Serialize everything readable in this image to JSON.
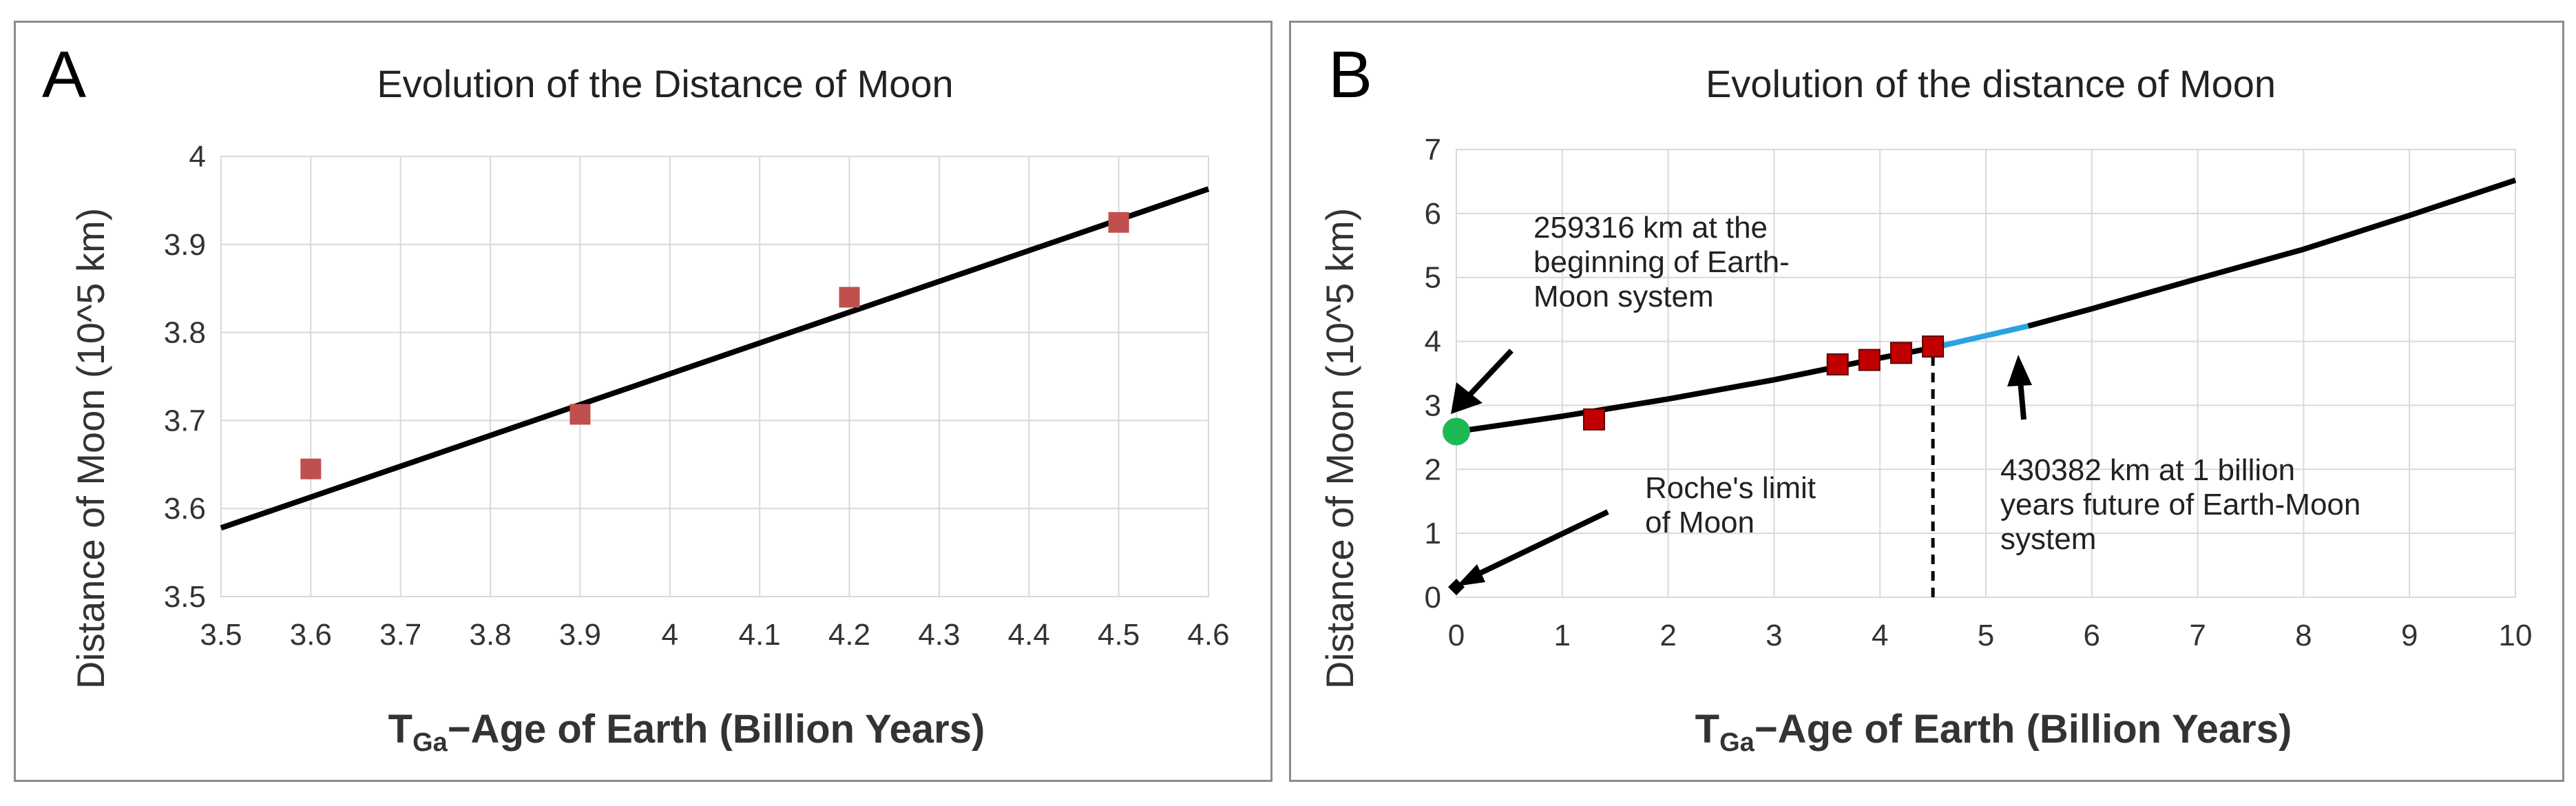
{
  "chart_data": [
    {
      "panel_letter": "A",
      "type": "scatter",
      "title": "Evolution of the Distance of Moon",
      "xlabel": "TGa−Age of Earth (Billion Years)",
      "ylabel": "Distance of Moon (10^5 km)",
      "xlim": [
        3.5,
        4.6
      ],
      "ylim": [
        3.5,
        4.0
      ],
      "xticks": [
        3.5,
        3.6,
        3.7,
        3.8,
        3.9,
        4.0,
        4.1,
        4.2,
        4.3,
        4.4,
        4.5,
        4.6
      ],
      "yticks": [
        3.5,
        3.6,
        3.7,
        3.8,
        3.9,
        4.0
      ],
      "grid": true,
      "series": [
        {
          "kind": "markers",
          "marker": "square",
          "color": "#c0504d",
          "x": [
            3.6,
            3.9,
            4.2,
            4.5
          ],
          "y": [
            3.645,
            3.707,
            3.84,
            3.925
          ]
        },
        {
          "kind": "line",
          "color": "#000000",
          "x": [
            3.5,
            4.6
          ],
          "y": [
            3.578,
            3.963
          ]
        }
      ]
    },
    {
      "panel_letter": "B",
      "type": "line",
      "title": "Evolution of the distance of Moon",
      "xlabel": "TGa−Age of Earth (Billion Years)",
      "ylabel": "Distance of Moon (10^5 km)",
      "xlim": [
        0,
        10
      ],
      "ylim": [
        0,
        7
      ],
      "xticks": [
        0,
        1,
        2,
        3,
        4,
        5,
        6,
        7,
        8,
        9,
        10
      ],
      "yticks": [
        0,
        1,
        2,
        3,
        4,
        5,
        6,
        7
      ],
      "grid": true,
      "series": [
        {
          "kind": "line",
          "color": "#000000",
          "x": [
            0,
            1,
            2,
            3,
            4,
            4.5
          ],
          "y": [
            2.59,
            2.83,
            3.1,
            3.4,
            3.74,
            3.9
          ]
        },
        {
          "kind": "line",
          "color": "#29a3e0",
          "x": [
            4.5,
            5.0,
            5.4
          ],
          "y": [
            3.9,
            4.09,
            4.24
          ]
        },
        {
          "kind": "line",
          "color": "#000000",
          "x": [
            5.4,
            6,
            7,
            8,
            9,
            10
          ],
          "y": [
            4.24,
            4.51,
            4.98,
            5.44,
            5.97,
            6.52
          ]
        },
        {
          "kind": "markers",
          "marker": "square",
          "color": "#c00000",
          "x": [
            1.3,
            3.6,
            3.9,
            4.2,
            4.5
          ],
          "y": [
            2.78,
            3.64,
            3.71,
            3.82,
            3.92
          ]
        },
        {
          "kind": "markers",
          "marker": "circle",
          "color": "#1db954",
          "x": [
            0
          ],
          "y": [
            2.59
          ]
        },
        {
          "kind": "markers",
          "marker": "diamond",
          "color": "#000000",
          "x": [
            0
          ],
          "y": [
            0.16
          ]
        }
      ],
      "vline": {
        "x": 4.5,
        "y_from": 0,
        "y_to": 3.9,
        "style": "dashed"
      },
      "annotations": [
        "259316 km at the beginning of Earth-Moon system",
        "430382 km at 1 billion years future of Earth-Moon system",
        "Roche's limit of Moon"
      ]
    }
  ],
  "annotations": {
    "start_lines": [
      "259316 km at the",
      "beginning of Earth-",
      "Moon system"
    ],
    "future_lines": [
      "430382 km at 1 billion",
      "years future of Earth-Moon",
      "system"
    ],
    "roche_lines": [
      "Roche's limit",
      "of Moon"
    ]
  }
}
